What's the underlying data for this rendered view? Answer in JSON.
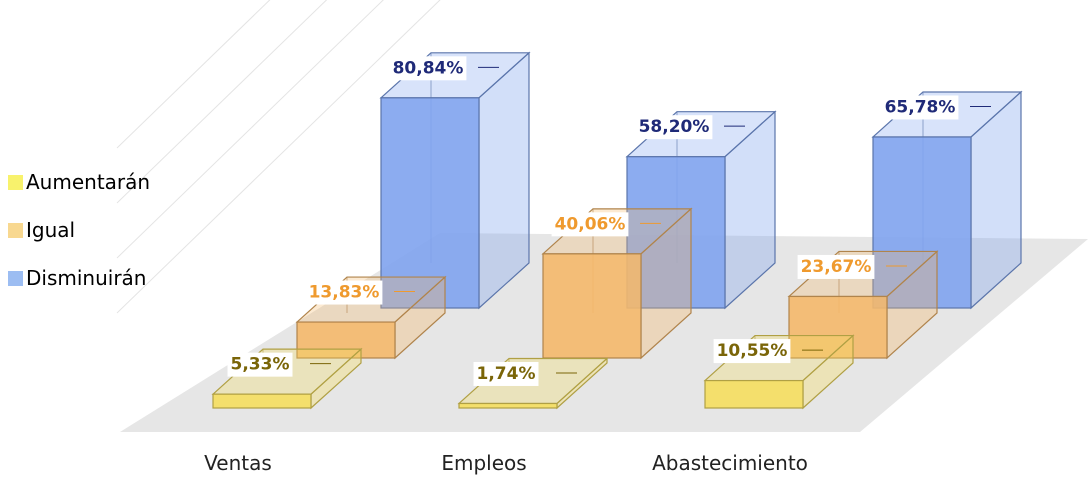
{
  "chart_data": {
    "type": "bar",
    "three_d": true,
    "grid": true,
    "legend_position": "left",
    "title": "",
    "xlabel": "",
    "ylabel": "",
    "ylim": [
      0,
      100
    ],
    "categories": [
      "Ventas",
      "Empleos",
      "Abastecimiento"
    ],
    "series": [
      {
        "name": "Aumentarán",
        "values": [
          5.33,
          1.74,
          10.55
        ],
        "labels": [
          "5,33%",
          "1,74%",
          "10,55%"
        ],
        "color": "#f5de5e",
        "label_color": "#7a6508"
      },
      {
        "name": "Igual",
        "values": [
          13.83,
          40.06,
          23.67
        ],
        "labels": [
          "13,83%",
          "40,06%",
          "23,67%"
        ],
        "color": "#f4b86a",
        "label_color": "#ef9a2e"
      },
      {
        "name": "Disminuirán",
        "values": [
          80.84,
          58.2,
          65.78
        ],
        "labels": [
          "80,84%",
          "58,20%",
          "65,78%"
        ],
        "color": "#7fa3ee",
        "label_color": "#1f2a78"
      }
    ]
  },
  "legend": {
    "items": [
      {
        "label": "Aumentarán",
        "color": "#f8f26c"
      },
      {
        "label": "Igual",
        "color": "#f8d890"
      },
      {
        "label": "Disminuirán",
        "color": "#9cbdf2"
      }
    ]
  }
}
